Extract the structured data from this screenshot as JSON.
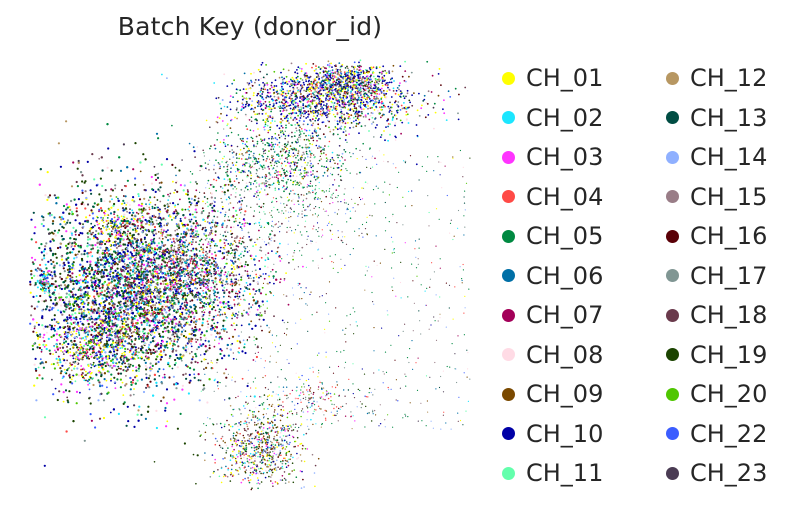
{
  "chart_data": {
    "type": "scatter",
    "title": "Batch Key (donor_id)",
    "xlabel": "",
    "ylabel": "",
    "grid": false,
    "axes": false,
    "legend_placement": "right, two columns",
    "series": [
      {
        "name": "CH_01",
        "color": "#FFFF00"
      },
      {
        "name": "CH_02",
        "color": "#1CE6FF"
      },
      {
        "name": "CH_03",
        "color": "#FF34FF"
      },
      {
        "name": "CH_04",
        "color": "#FF4A46"
      },
      {
        "name": "CH_05",
        "color": "#008941"
      },
      {
        "name": "CH_06",
        "color": "#006FA6"
      },
      {
        "name": "CH_07",
        "color": "#A30059"
      },
      {
        "name": "CH_08",
        "color": "#FFDBE5"
      },
      {
        "name": "CH_09",
        "color": "#7A4900"
      },
      {
        "name": "CH_10",
        "color": "#0000A6"
      },
      {
        "name": "CH_11",
        "color": "#63FFAC"
      },
      {
        "name": "CH_12",
        "color": "#B79762"
      },
      {
        "name": "CH_13",
        "color": "#004D43"
      },
      {
        "name": "CH_14",
        "color": "#8FB0FF"
      },
      {
        "name": "CH_15",
        "color": "#997D87"
      },
      {
        "name": "CH_16",
        "color": "#5A0007"
      },
      {
        "name": "CH_17",
        "color": "#809693"
      },
      {
        "name": "CH_18",
        "color": "#6A3A4C"
      },
      {
        "name": "CH_19",
        "color": "#1B4400"
      },
      {
        "name": "CH_20",
        "color": "#4FC601"
      },
      {
        "name": "CH_22",
        "color": "#3B5DFF"
      },
      {
        "name": "CH_23",
        "color": "#4A3B53"
      }
    ]
  }
}
